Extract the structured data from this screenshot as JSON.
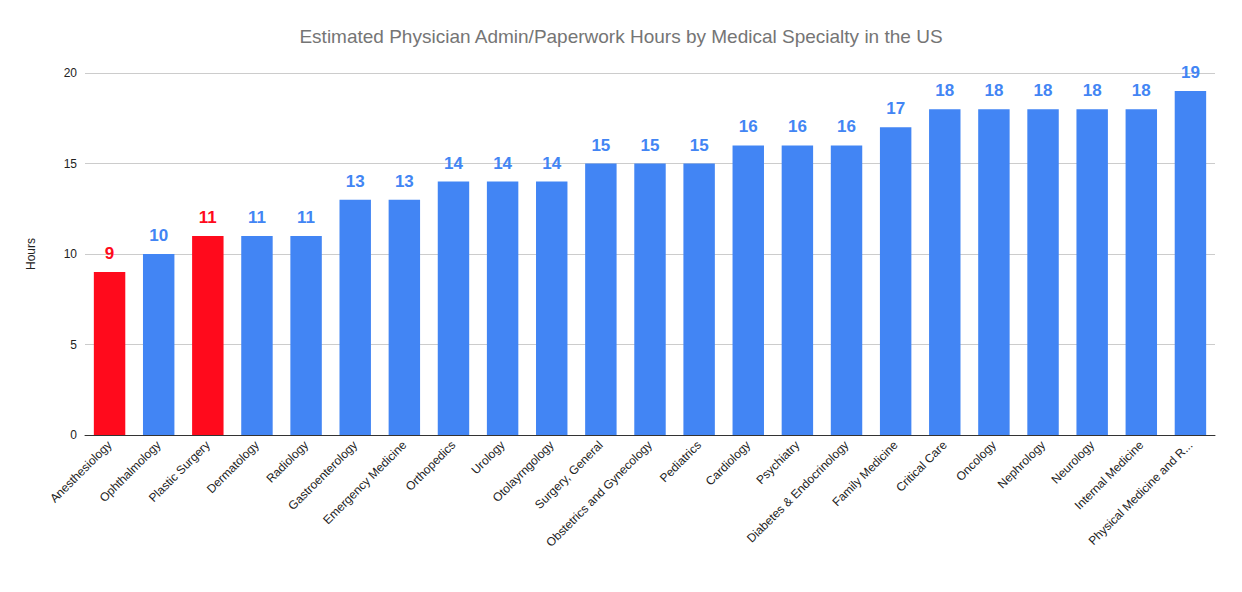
{
  "chart_data": {
    "type": "bar",
    "title": "Estimated Physician Admin/Paperwork Hours by Medical Specialty in the US",
    "y_label": "Hours",
    "categories": [
      "Anesthesiology",
      "Ophthalmology",
      "Plastic Surgery",
      "Dermatology",
      "Radiology",
      "Gastroenterology",
      "Emergency Medicine",
      "Orthopedics",
      "Urology",
      "Otolayrngology",
      "Surgery, General",
      "Obstetrics and Gynecology",
      "Pediatrics",
      "Cardiology",
      "Psychiatry",
      "Diabetes & Endocrinology",
      "Family Medicine",
      "Critical Care",
      "Oncology",
      "Nephrology",
      "Neurology",
      "Internal Medicine",
      "Physical Medicine and R..."
    ],
    "values": [
      9,
      10,
      11,
      11,
      11,
      13,
      13,
      14,
      14,
      14,
      15,
      15,
      15,
      16,
      16,
      16,
      17,
      18,
      18,
      18,
      18,
      18,
      19
    ],
    "colors": [
      "#ff0a1c",
      "#4285f4",
      "#ff0a1c",
      "#4285f4",
      "#4285f4",
      "#4285f4",
      "#4285f4",
      "#4285f4",
      "#4285f4",
      "#4285f4",
      "#4285f4",
      "#4285f4",
      "#4285f4",
      "#4285f4",
      "#4285f4",
      "#4285f4",
      "#4285f4",
      "#4285f4",
      "#4285f4",
      "#4285f4",
      "#4285f4",
      "#4285f4",
      "#4285f4"
    ],
    "ylim": [
      0,
      20
    ],
    "yticks": [
      0,
      5,
      10,
      15,
      20
    ],
    "grid": true,
    "data_labels": true
  }
}
